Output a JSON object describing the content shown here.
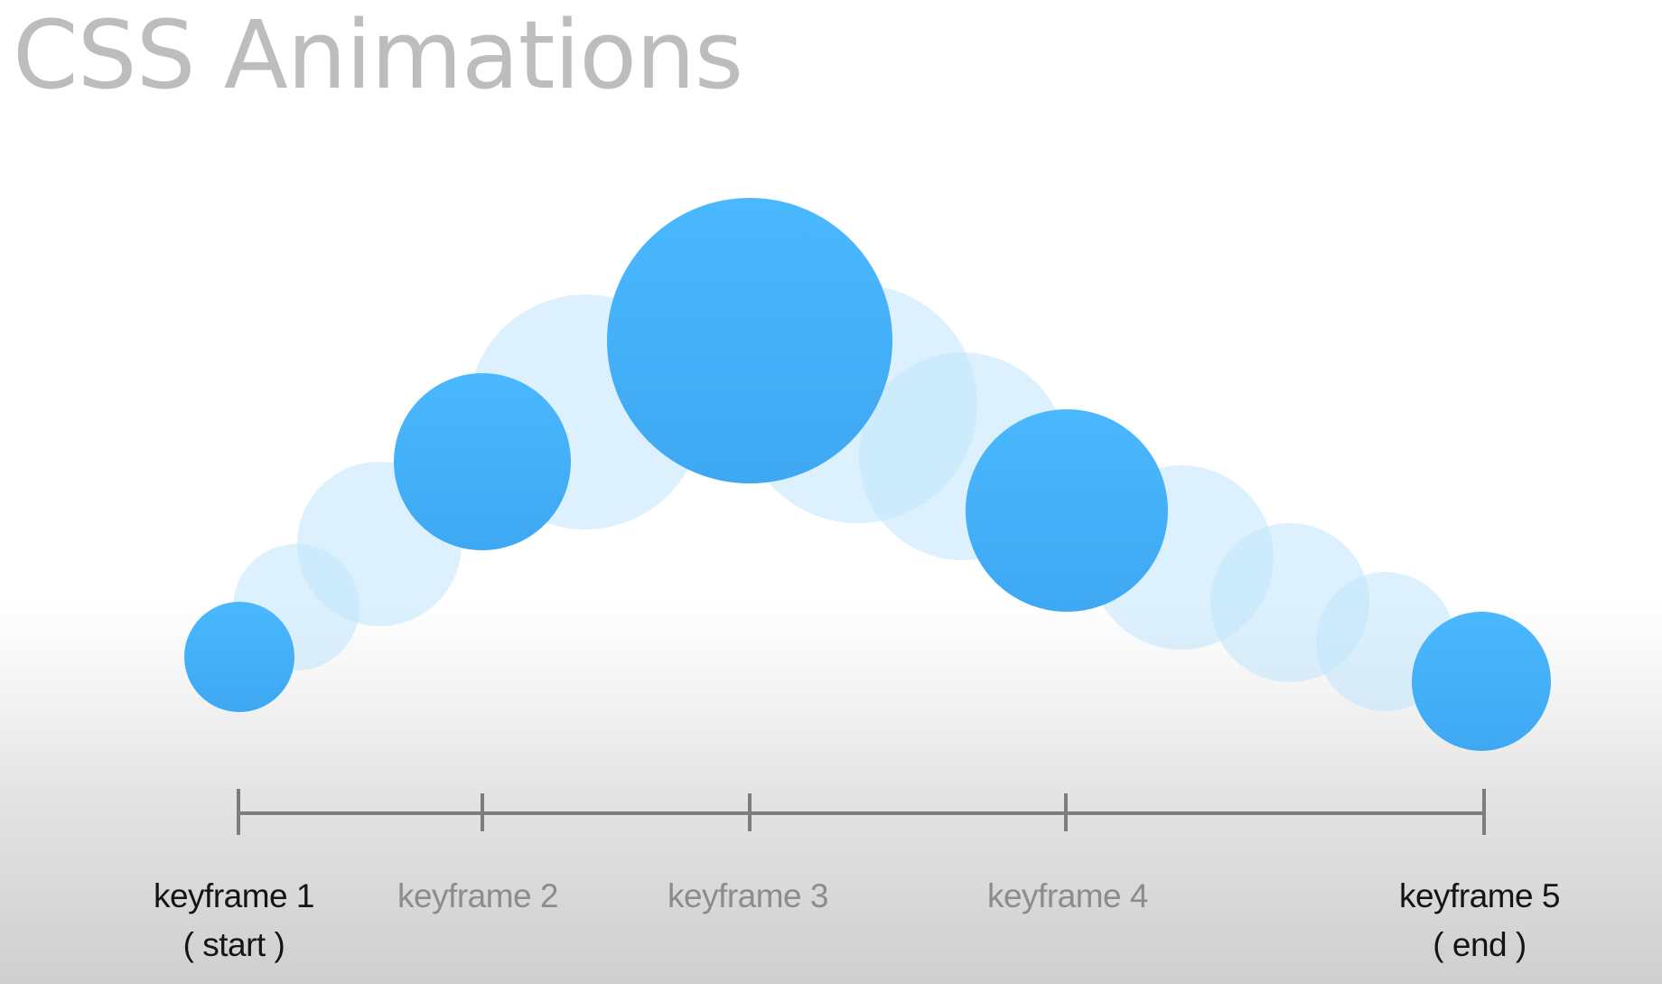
{
  "title": "CSS Animations",
  "colors": {
    "keyframe_circle": "#4ab8ff",
    "tween_circle": "#bfe6fc",
    "timeline": "#7d7d7d",
    "title": "#bdbdbd",
    "endpoint_label": "#141414",
    "mid_label": "#8c8c8c"
  },
  "keyframes": [
    {
      "label": "keyframe 1",
      "sublabel": "( start )"
    },
    {
      "label": "keyframe 2",
      "sublabel": ""
    },
    {
      "label": "keyframe 3",
      "sublabel": ""
    },
    {
      "label": "keyframe 4",
      "sublabel": ""
    },
    {
      "label": "keyframe 5",
      "sublabel": "( end )"
    }
  ]
}
